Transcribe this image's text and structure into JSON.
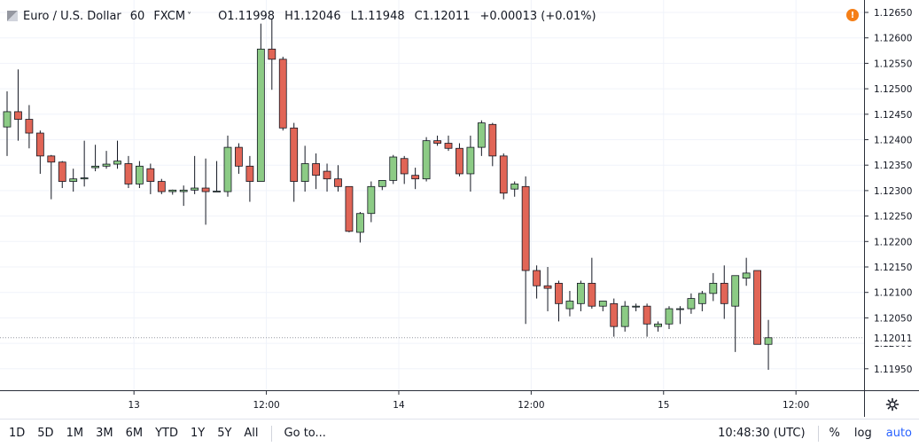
{
  "legend": {
    "symbol": "Euro / U.S. Dollar",
    "interval": "60",
    "exchange": "FXCM",
    "open_label": "O",
    "open": "1.11998",
    "high_label": "H",
    "high": "1.12046",
    "low_label": "L",
    "low": "1.11948",
    "close_label": "C",
    "close": "1.12011",
    "change": "+0.00013 (+0.01%)"
  },
  "icons": {
    "warning": "warning-icon",
    "settings": "gear-icon",
    "symbol": "symbol-flag-icon",
    "dropdown": "chevron-down-icon"
  },
  "colors": {
    "up": "#8ccb85",
    "down": "#e16556",
    "wick": "#131722",
    "grid": "#f0f3fa",
    "warning": "#f57f17",
    "accent": "#2962ff"
  },
  "toolbar": {
    "ranges": [
      "1D",
      "5D",
      "1M",
      "3M",
      "6M",
      "YTD",
      "1Y",
      "5Y",
      "All"
    ],
    "goto": "Go to...",
    "clock": "10:48:30 (UTC)",
    "percent": "%",
    "log": "log",
    "auto": "auto"
  },
  "chart_data": {
    "type": "candlestick",
    "title": "Euro / U.S. Dollar",
    "current_price": 1.12011,
    "y_ticks": [
      1.1265,
      1.126,
      1.1255,
      1.125,
      1.1245,
      1.124,
      1.1235,
      1.123,
      1.1225,
      1.122,
      1.1215,
      1.121,
      1.1205,
      1.12,
      1.1195
    ],
    "y_tick_labels": [
      "1.12650",
      "1.12600",
      "1.12550",
      "1.12500",
      "1.12450",
      "1.12400",
      "1.12350",
      "1.12300",
      "1.12250",
      "1.12200",
      "1.12150",
      "1.12100",
      "1.12050",
      "1.12000",
      "1.11950"
    ],
    "x_ticks": [
      {
        "label": "13",
        "index": 11.5
      },
      {
        "label": "12:00",
        "index": 23.5
      },
      {
        "label": "14",
        "index": 35.5
      },
      {
        "label": "12:00",
        "index": 47.5
      },
      {
        "label": "15",
        "index": 59.5
      },
      {
        "label": "12:00",
        "index": 71.5
      }
    ],
    "candles": [
      [
        1.12425,
        1.12495,
        1.12368,
        1.12455
      ],
      [
        1.12455,
        1.12538,
        1.12398,
        1.1244
      ],
      [
        1.1244,
        1.12468,
        1.12383,
        1.12413
      ],
      [
        1.12413,
        1.12418,
        1.12333,
        1.12368
      ],
      [
        1.12368,
        1.1237,
        1.12283,
        1.12356
      ],
      [
        1.12356,
        1.12358,
        1.12305,
        1.12318
      ],
      [
        1.12318,
        1.12343,
        1.12298,
        1.12323
      ],
      [
        1.12323,
        1.12398,
        1.12308,
        1.12325
      ],
      [
        1.12345,
        1.1239,
        1.12338,
        1.12348
      ],
      [
        1.12348,
        1.12378,
        1.12343,
        1.12352
      ],
      [
        1.12352,
        1.12398,
        1.12343,
        1.12358
      ],
      [
        1.12353,
        1.12368,
        1.12305,
        1.12313
      ],
      [
        1.12313,
        1.12358,
        1.12305,
        1.12348
      ],
      [
        1.12343,
        1.12353,
        1.12293,
        1.12318
      ],
      [
        1.12318,
        1.12323,
        1.12293,
        1.12298
      ],
      [
        1.12298,
        1.12302,
        1.12292,
        1.12301
      ],
      [
        1.12298,
        1.1231,
        1.1227,
        1.12301
      ],
      [
        1.12301,
        1.12368,
        1.12293,
        1.12305
      ],
      [
        1.12305,
        1.12363,
        1.12233,
        1.12298
      ],
      [
        1.12298,
        1.12358,
        1.12298,
        1.12299
      ],
      [
        1.12298,
        1.12408,
        1.12288,
        1.12385
      ],
      [
        1.12385,
        1.12393,
        1.12333,
        1.12348
      ],
      [
        1.12348,
        1.12368,
        1.12278,
        1.12318
      ],
      [
        1.12318,
        1.12628,
        1.12318,
        1.12578
      ],
      [
        1.12578,
        1.12638,
        1.12498,
        1.12558
      ],
      [
        1.12558,
        1.12563,
        1.12418,
        1.12423
      ],
      [
        1.12423,
        1.12433,
        1.12278,
        1.12318
      ],
      [
        1.12318,
        1.12388,
        1.12298,
        1.12353
      ],
      [
        1.12353,
        1.12373,
        1.12303,
        1.1233
      ],
      [
        1.12338,
        1.12353,
        1.12298,
        1.12323
      ],
      [
        1.12323,
        1.1235,
        1.12298,
        1.12308
      ],
      [
        1.12308,
        1.12308,
        1.12218,
        1.1222
      ],
      [
        1.12218,
        1.12258,
        1.12198,
        1.12255
      ],
      [
        1.12255,
        1.12318,
        1.12238,
        1.12308
      ],
      [
        1.12308,
        1.1232,
        1.12301,
        1.1232
      ],
      [
        1.1232,
        1.1237,
        1.12313,
        1.12366
      ],
      [
        1.12363,
        1.12368,
        1.12313,
        1.12333
      ],
      [
        1.1233,
        1.12345,
        1.12303,
        1.12323
      ],
      [
        1.12323,
        1.12405,
        1.12318,
        1.12398
      ],
      [
        1.12398,
        1.12408,
        1.12388,
        1.12393
      ],
      [
        1.12393,
        1.12408,
        1.12378,
        1.12383
      ],
      [
        1.12383,
        1.12393,
        1.12328,
        1.12333
      ],
      [
        1.12333,
        1.12408,
        1.12298,
        1.12385
      ],
      [
        1.12385,
        1.12438,
        1.12368,
        1.12433
      ],
      [
        1.1243,
        1.12433,
        1.12348,
        1.12368
      ],
      [
        1.12368,
        1.12373,
        1.12283,
        1.12295
      ],
      [
        1.12303,
        1.12318,
        1.12288,
        1.12313
      ],
      [
        1.12308,
        1.12328,
        1.12038,
        1.12143
      ],
      [
        1.12143,
        1.12153,
        1.12088,
        1.12113
      ],
      [
        1.12113,
        1.1215,
        1.12063,
        1.12108
      ],
      [
        1.12118,
        1.12123,
        1.12043,
        1.12078
      ],
      [
        1.12068,
        1.12103,
        1.12053,
        1.12083
      ],
      [
        1.12078,
        1.12123,
        1.12063,
        1.12118
      ],
      [
        1.12118,
        1.12168,
        1.12068,
        1.12073
      ],
      [
        1.12073,
        1.12083,
        1.12063,
        1.12083
      ],
      [
        1.12078,
        1.12088,
        1.12013,
        1.12033
      ],
      [
        1.12033,
        1.12083,
        1.12023,
        1.12073
      ],
      [
        1.12073,
        1.12078,
        1.12063,
        1.12073
      ],
      [
        1.12073,
        1.12078,
        1.12013,
        1.12038
      ],
      [
        1.12033,
        1.12043,
        1.12023,
        1.12038
      ],
      [
        1.12038,
        1.12073,
        1.12028,
        1.12068
      ],
      [
        1.12068,
        1.12073,
        1.12038,
        1.12068
      ],
      [
        1.12068,
        1.12098,
        1.12058,
        1.12088
      ],
      [
        1.12078,
        1.12103,
        1.12063,
        1.12098
      ],
      [
        1.12098,
        1.12138,
        1.12083,
        1.12118
      ],
      [
        1.12118,
        1.12153,
        1.12048,
        1.12078
      ],
      [
        1.12073,
        1.12133,
        1.11983,
        1.12133
      ],
      [
        1.12128,
        1.12168,
        1.12113,
        1.12138
      ],
      [
        1.12143,
        1.12143,
        1.11998,
        1.11998
      ],
      [
        1.11998,
        1.12046,
        1.11948,
        1.12011
      ]
    ]
  }
}
